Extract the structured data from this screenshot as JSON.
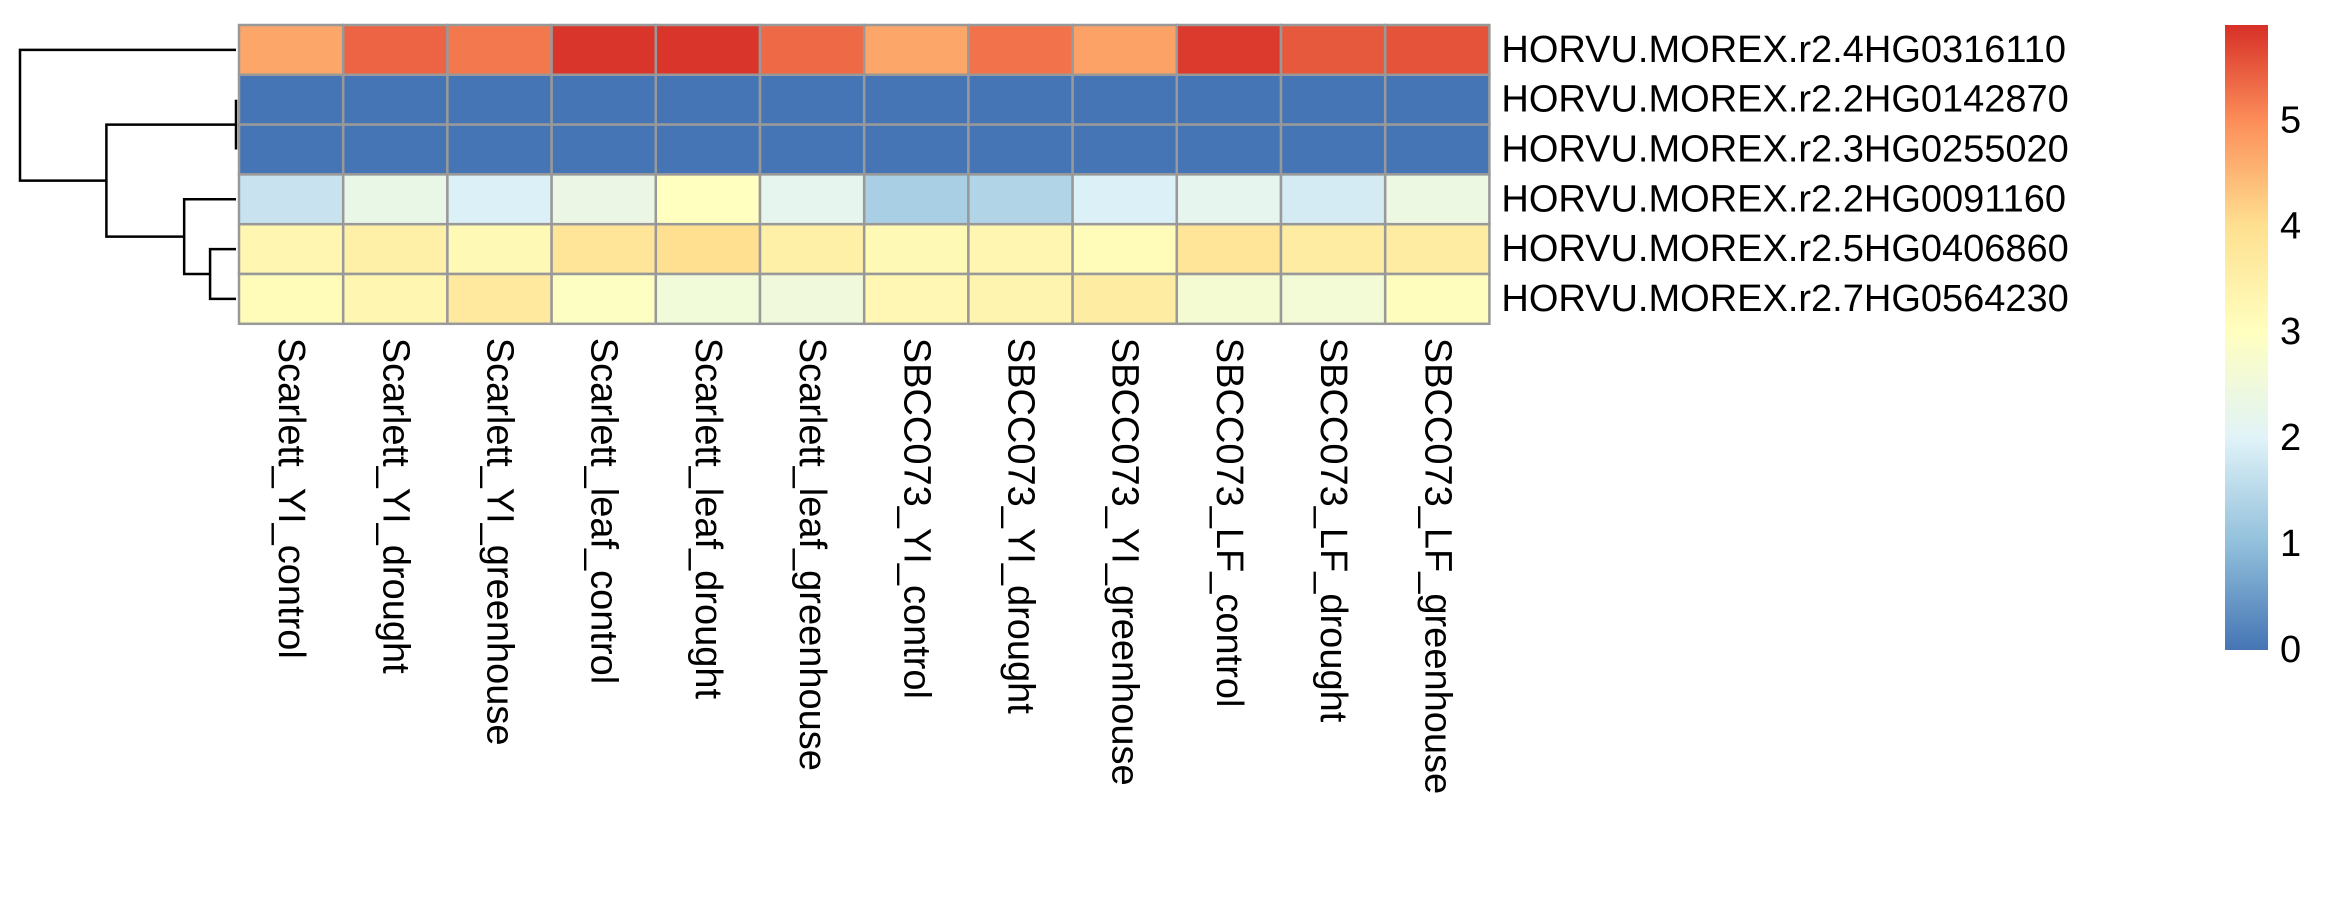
{
  "chart_data": {
    "type": "heatmap",
    "title": "",
    "columns": [
      "Scarlett_YI_control",
      "Scarlett_YI_drought",
      "Scarlett_YI_greenhouse",
      "Scarlett_leaf_control",
      "Scarlett_leaf_drought",
      "Scarlett_leaf_greenhouse",
      "SBCC073_YI_control",
      "SBCC073_YI_drought",
      "SBCC073_YI_greenhouse",
      "SBCC073_LF_control",
      "SBCC073_LF_drought",
      "SBCC073_LF_greenhouse"
    ],
    "rows": [
      "HORVU.MOREX.r2.4HG0316110",
      "HORVU.MOREX.r2.2HG0142870",
      "HORVU.MOREX.r2.3HG0255020",
      "HORVU.MOREX.r2.2HG0091160",
      "HORVU.MOREX.r2.5HG0406860",
      "HORVU.MOREX.r2.7HG0564230"
    ],
    "values": [
      [
        4.7,
        5.4,
        5.2,
        5.85,
        5.85,
        5.35,
        4.7,
        5.25,
        4.75,
        5.8,
        5.5,
        5.55
      ],
      [
        0.0,
        0.0,
        0.0,
        0.0,
        0.0,
        0.0,
        0.0,
        0.0,
        0.0,
        0.0,
        0.0,
        0.0
      ],
      [
        0.0,
        0.0,
        0.0,
        0.0,
        0.0,
        0.0,
        0.0,
        0.0,
        0.0,
        0.0,
        0.0,
        0.0
      ],
      [
        1.7,
        2.3,
        1.95,
        2.35,
        3.0,
        2.2,
        1.3,
        1.4,
        1.95,
        2.2,
        1.85,
        2.4
      ],
      [
        3.3,
        3.5,
        3.2,
        3.85,
        4.0,
        3.5,
        3.2,
        3.3,
        3.1,
        3.85,
        3.6,
        3.6
      ],
      [
        3.1,
        3.3,
        3.7,
        2.95,
        2.55,
        2.5,
        3.25,
        3.35,
        3.6,
        2.65,
        2.6,
        3.05
      ]
    ],
    "color_scale": {
      "min": 0,
      "max": 5.9,
      "stops": [
        {
          "v": 0,
          "color": "#4575B4"
        },
        {
          "v": 1,
          "color": "#91BFDB"
        },
        {
          "v": 2,
          "color": "#E0F3F8"
        },
        {
          "v": 3,
          "color": "#FFFFBF"
        },
        {
          "v": 4,
          "color": "#FEE090"
        },
        {
          "v": 5,
          "color": "#FC8D59"
        },
        {
          "v": 5.9,
          "color": "#D73027"
        }
      ],
      "ticks": [
        0,
        1,
        2,
        3,
        4,
        5
      ]
    },
    "row_dendrogram": {
      "order": [
        0,
        1,
        2,
        3,
        4,
        5
      ],
      "merges": [
        {
          "left": 4,
          "right": 5,
          "height": 0.9
        },
        {
          "left": 3,
          "right": "m0",
          "height": 1.8
        },
        {
          "left": 1,
          "right": 2,
          "height": 0.0
        },
        {
          "left": "m2",
          "right": "m1",
          "height": 4.5
        },
        {
          "left": 0,
          "right": "m3",
          "height": 7.5
        }
      ]
    },
    "cell_border_color": "#999999",
    "dendrogram_color": "#000000"
  }
}
